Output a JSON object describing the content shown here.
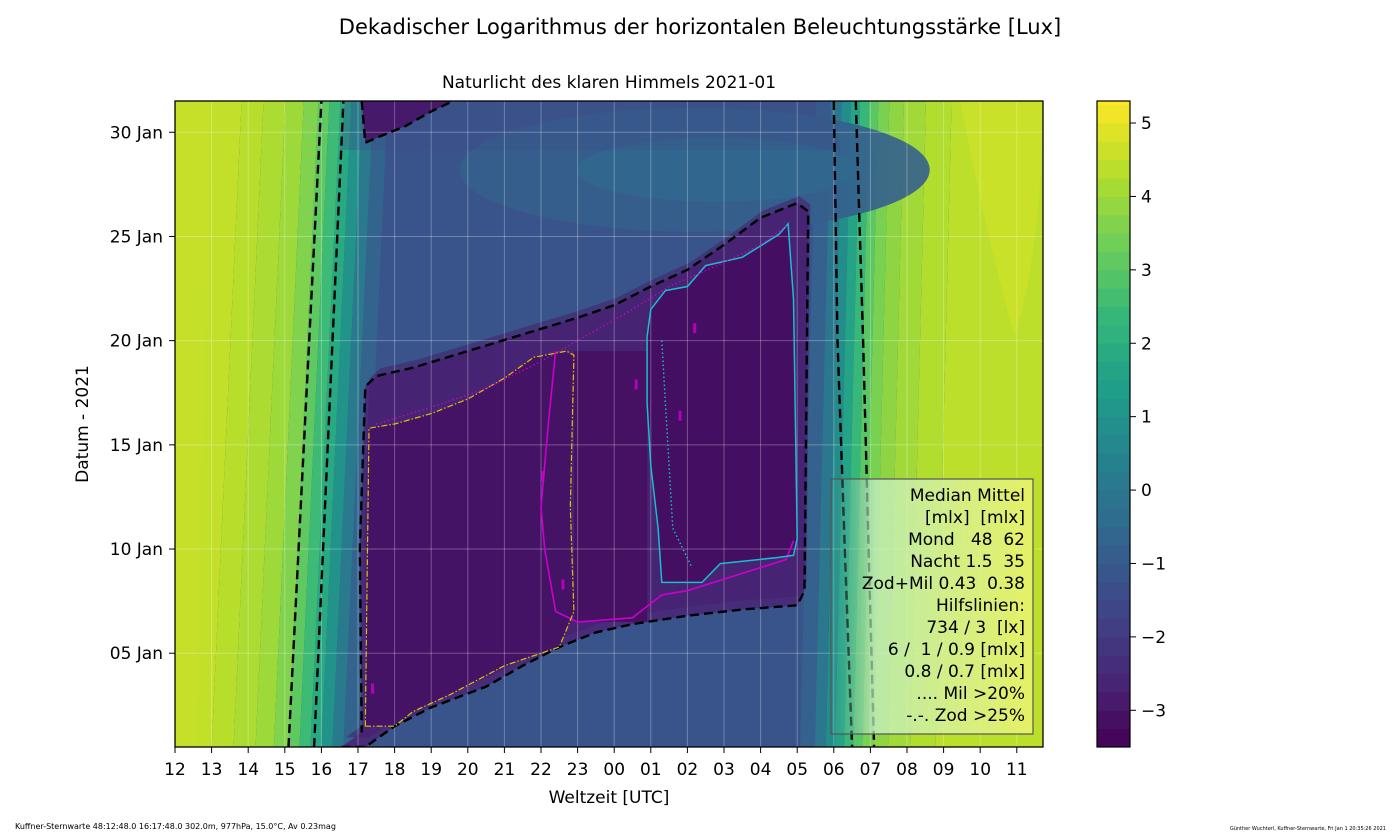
{
  "chart_data": {
    "type": "heatmap",
    "suptitle": "Dekadischer Logarithmus der horizontalen Beleuchtungsstärke [Lux]",
    "title": "Naturlicht des klaren Himmels 2021-01",
    "xlabel": "Weltzeit [UTC]",
    "ylabel": "Datum - 2021",
    "x_tick_labels": [
      "12",
      "13",
      "14",
      "15",
      "16",
      "17",
      "18",
      "19",
      "20",
      "21",
      "22",
      "23",
      "00",
      "01",
      "02",
      "03",
      "04",
      "05",
      "06",
      "07",
      "08",
      "09",
      "10",
      "11"
    ],
    "y_tick_labels": [
      "05 Jan",
      "10 Jan",
      "15 Jan",
      "20 Jan",
      "25 Jan",
      "30 Jan"
    ],
    "y_tick_days": [
      5,
      10,
      15,
      20,
      25,
      30
    ],
    "ylim_days": [
      0.5,
      31.5
    ],
    "colorbar": {
      "min": -3.5,
      "max": 5.3,
      "ticks": [
        5,
        4,
        3,
        2,
        1,
        0,
        -1,
        -2,
        -3
      ],
      "tick_labels": [
        "5",
        "4",
        "3",
        "2",
        "1",
        "0",
        "−1",
        "−2",
        "−3"
      ]
    },
    "grid": true,
    "legend": {
      "placement": "lower-right",
      "lines": [
        "Median Mittel",
        "[mlx]  [mlx]",
        "Mond   48  62",
        "Nacht 1.5  35",
        "Zod+Mil 0.43  0.38",
        "Hilfslinien:",
        "734 / 3  [lx]",
        "6 /  1 / 0.9 [mlx]",
        "0.8 / 0.7 [mlx]",
        ".... Mil >20%",
        "-.-. Zod >25%"
      ]
    },
    "contours": {
      "dashed_black": [
        {
          "name": "sunset-outer",
          "points": [
            [
              15.1,
              0.5
            ],
            [
              16.0,
              31.5
            ]
          ]
        },
        {
          "name": "sunset-inner",
          "points": [
            [
              15.8,
              0.5
            ],
            [
              16.6,
              31.5
            ]
          ]
        },
        {
          "name": "sunrise-inner",
          "points": [
            [
              30.0,
              31.5
            ],
            [
              30.1,
              20
            ],
            [
              30.3,
              10
            ],
            [
              30.5,
              0.5
            ]
          ]
        },
        {
          "name": "sunrise-outer",
          "points": [
            [
              30.6,
              31.5
            ],
            [
              30.8,
              20
            ],
            [
              30.95,
              10
            ],
            [
              31.1,
              0.5
            ]
          ]
        },
        {
          "name": "night-lower",
          "points": [
            [
              16.55,
              0.5
            ],
            [
              17.2,
              0.5
            ],
            [
              18.0,
              1.5
            ],
            [
              19.0,
              2.4
            ],
            [
              20.5,
              3.4
            ],
            [
              21.5,
              4.4
            ],
            [
              22.5,
              5.3
            ],
            [
              23.5,
              6.0
            ],
            [
              24.5,
              6.4
            ],
            [
              26.0,
              6.8
            ],
            [
              27.5,
              7.1
            ],
            [
              29.0,
              7.3
            ],
            [
              29.2,
              8.0
            ],
            [
              29.3,
              26.2
            ],
            [
              29.0,
              26.6
            ],
            [
              28.0,
              25.9
            ],
            [
              27.0,
              24.6
            ],
            [
              26.0,
              23.4
            ],
            [
              25.0,
              22.6
            ],
            [
              24.0,
              21.7
            ],
            [
              23.0,
              21.1
            ],
            [
              21.5,
              20.3
            ],
            [
              20.0,
              19.5
            ],
            [
              18.5,
              18.7
            ],
            [
              17.5,
              18.3
            ],
            [
              17.2,
              17.8
            ],
            [
              17.05,
              10
            ],
            [
              17.1,
              1.2
            ]
          ]
        },
        {
          "name": "moon-upper",
          "points": [
            [
              17.1,
              31.5
            ],
            [
              17.2,
              29.5
            ],
            [
              17.6,
              29.8
            ],
            [
              18.3,
              30.3
            ],
            [
              19.0,
              31.0
            ],
            [
              19.6,
              31.5
            ]
          ]
        }
      ],
      "cyan": [
        [
          24.9,
          20.2
        ],
        [
          24.9,
          17
        ],
        [
          25.0,
          14
        ],
        [
          25.2,
          11
        ],
        [
          25.3,
          8.4
        ],
        [
          26.4,
          8.4
        ],
        [
          26.9,
          9.3
        ],
        [
          28.5,
          9.6
        ],
        [
          28.9,
          9.7
        ],
        [
          29.0,
          10.5
        ],
        [
          28.9,
          22
        ],
        [
          28.75,
          25.6
        ],
        [
          28.5,
          25.1
        ],
        [
          27.5,
          24.0
        ],
        [
          26.5,
          23.6
        ],
        [
          26.0,
          22.6
        ],
        [
          25.4,
          22.4
        ],
        [
          25.0,
          21.5
        ],
        [
          24.9,
          20.2
        ]
      ],
      "magenta": [
        [
          22.4,
          19.5
        ],
        [
          22.2,
          16
        ],
        [
          22.0,
          12
        ],
        [
          22.1,
          10
        ],
        [
          22.4,
          7.0
        ],
        [
          23.0,
          6.5
        ],
        [
          24.5,
          6.7
        ],
        [
          25.3,
          7.8
        ],
        [
          26.0,
          8.0
        ],
        [
          28.7,
          9.5
        ],
        [
          28.9,
          10.4
        ]
      ],
      "yellow_dashdot": [
        [
          17.2,
          1.5
        ],
        [
          17.3,
          15.8
        ],
        [
          18.0,
          16.0
        ],
        [
          19.0,
          16.5
        ],
        [
          20.0,
          17.2
        ],
        [
          21.0,
          18.2
        ],
        [
          21.8,
          19.2
        ],
        [
          22.7,
          19.5
        ],
        [
          22.9,
          19.3
        ],
        [
          22.8,
          12
        ],
        [
          22.9,
          7
        ],
        [
          22.5,
          5.3
        ],
        [
          21.0,
          4.4
        ],
        [
          19.5,
          3.0
        ],
        [
          18.5,
          2.2
        ],
        [
          18.0,
          1.5
        ],
        [
          17.2,
          1.5
        ]
      ]
    }
  },
  "footer": {
    "left": "Kuffner-Sternwarte 48:12:48.0 16:17:48.0 302.0m,  977hPa, 15.0°C, Av 0.23mag",
    "right": "Günther Wuchterl, Kuffner-Sternwarte, Fri Jan  1 20:35:26 2021"
  },
  "colors": {
    "viridis": [
      "#440154",
      "#482878",
      "#3e4989",
      "#31688e",
      "#26828e",
      "#1f9e89",
      "#35b779",
      "#6ece58",
      "#b5de2b",
      "#fde725"
    ],
    "contour_black": "#000000",
    "contour_cyan": "#17becf",
    "contour_magenta": "#cc00cc",
    "contour_yellow": "#e0c000"
  }
}
